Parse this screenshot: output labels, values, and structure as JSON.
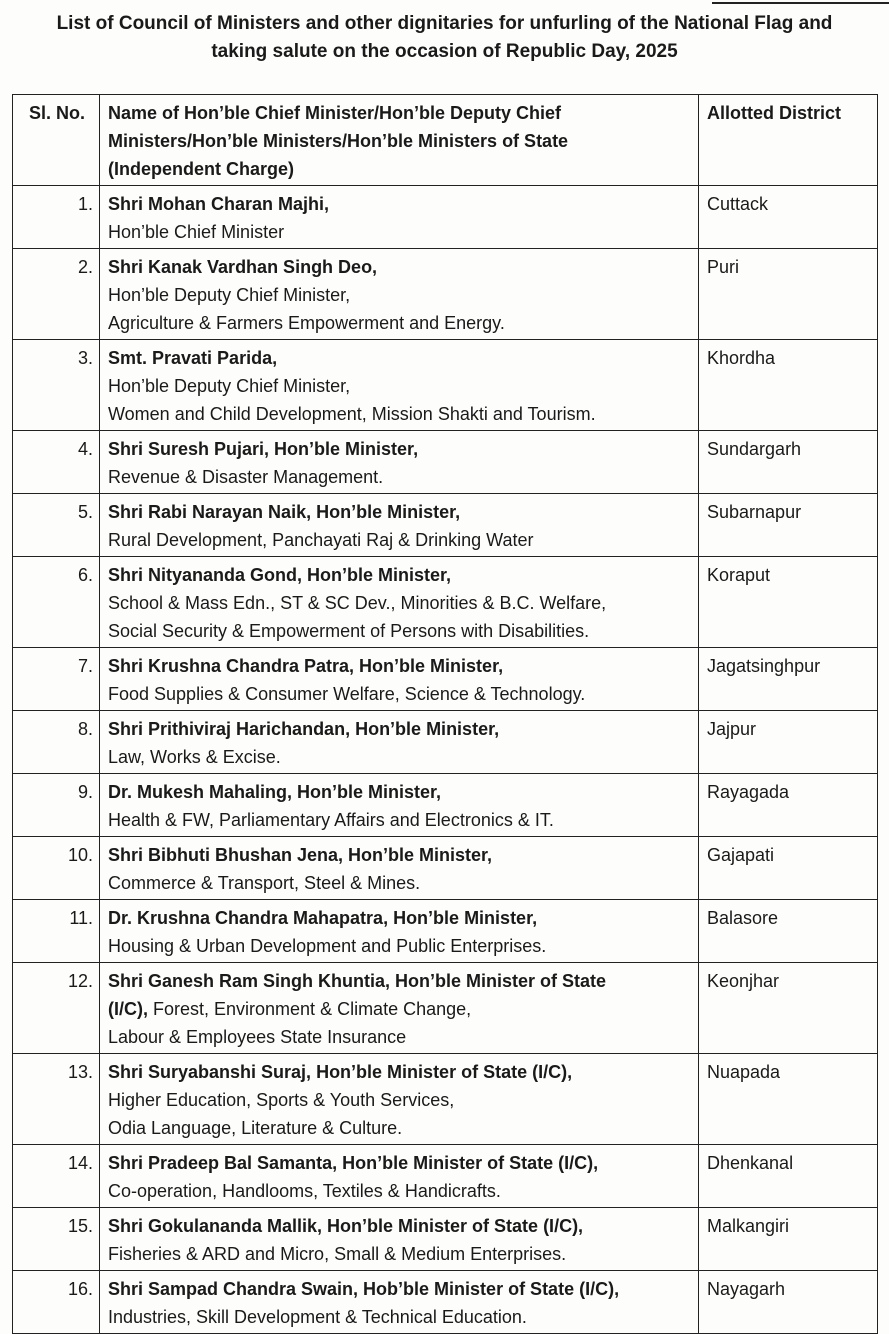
{
  "title": {
    "line1": "List of Council of Ministers and other dignitaries for unfurling of the National Flag and",
    "line2": "taking salute on the occasion of Republic Day, 2025"
  },
  "headers": {
    "sl": "Sl. No.",
    "name": [
      "Name of Hon’ble Chief Minister/Hon’ble Deputy Chief",
      "Ministers/Hon’ble Ministers/Hon’ble Ministers of State",
      "(Independent Charge)"
    ],
    "district": "Allotted District"
  },
  "rows": [
    {
      "sl": "1.",
      "lines": [
        {
          "b": "Shri Mohan Charan Majhi,",
          "t": ""
        },
        {
          "b": "",
          "t": "Hon’ble Chief Minister"
        }
      ],
      "district": "Cuttack"
    },
    {
      "sl": "2.",
      "lines": [
        {
          "b": "Shri Kanak Vardhan Singh Deo,",
          "t": ""
        },
        {
          "b": "",
          "t": "Hon’ble Deputy Chief Minister,"
        },
        {
          "b": "",
          "t": "Agriculture & Farmers Empowerment and Energy."
        }
      ],
      "district": "Puri"
    },
    {
      "sl": "3.",
      "lines": [
        {
          "b": "Smt. Pravati Parida,",
          "t": ""
        },
        {
          "b": "",
          "t": "Hon’ble Deputy Chief Minister,"
        },
        {
          "b": "",
          "t": "Women and Child Development, Mission Shakti and Tourism."
        }
      ],
      "district": "Khordha"
    },
    {
      "sl": "4.",
      "lines": [
        {
          "b": "Shri Suresh Pujari, Hon’ble Minister,",
          "t": ""
        },
        {
          "b": "",
          "t": "Revenue & Disaster Management."
        }
      ],
      "district": "Sundargarh"
    },
    {
      "sl": "5.",
      "lines": [
        {
          "b": "Shri Rabi Narayan Naik, Hon’ble Minister,",
          "t": ""
        },
        {
          "b": "",
          "t": "Rural Development, Panchayati Raj & Drinking Water"
        }
      ],
      "district": "Subarnapur"
    },
    {
      "sl": "6.",
      "lines": [
        {
          "b": "Shri Nityananda Gond, Hon’ble Minister,",
          "t": ""
        },
        {
          "b": "",
          "t": "School & Mass Edn., ST & SC Dev., Minorities & B.C. Welfare,"
        },
        {
          "b": "",
          "t": "Social Security & Empowerment of Persons with Disabilities."
        }
      ],
      "district": "Koraput"
    },
    {
      "sl": "7.",
      "lines": [
        {
          "b": "Shri Krushna Chandra Patra, Hon’ble Minister,",
          "t": ""
        },
        {
          "b": "",
          "t": "Food Supplies & Consumer Welfare, Science & Technology."
        }
      ],
      "district": "Jagatsinghpur"
    },
    {
      "sl": "8.",
      "lines": [
        {
          "b": "Shri Prithiviraj Harichandan, Hon’ble Minister,",
          "t": ""
        },
        {
          "b": "",
          "t": "Law, Works & Excise."
        }
      ],
      "district": "Jajpur"
    },
    {
      "sl": "9.",
      "lines": [
        {
          "b": "Dr. Mukesh Mahaling, Hon’ble Minister,",
          "t": ""
        },
        {
          "b": "",
          "t": "Health & FW, Parliamentary Affairs and Electronics & IT."
        }
      ],
      "district": "Rayagada"
    },
    {
      "sl": "10.",
      "lines": [
        {
          "b": "Shri Bibhuti Bhushan Jena, Hon’ble Minister,",
          "t": ""
        },
        {
          "b": "",
          "t": "Commerce & Transport, Steel & Mines."
        }
      ],
      "district": "Gajapati"
    },
    {
      "sl": "11.",
      "lines": [
        {
          "b": "Dr. Krushna Chandra Mahapatra, Hon’ble Minister,",
          "t": ""
        },
        {
          "b": "",
          "t": "Housing & Urban Development and Public Enterprises."
        }
      ],
      "district": "Balasore"
    },
    {
      "sl": "12.",
      "lines": [
        {
          "b": "Shri Ganesh Ram Singh Khuntia, Hon’ble Minister of State",
          "t": ""
        },
        {
          "b": "(I/C),",
          "t": " Forest, Environment & Climate Change,"
        },
        {
          "b": "",
          "t": "Labour & Employees State Insurance"
        }
      ],
      "district": "Keonjhar"
    },
    {
      "sl": "13.",
      "lines": [
        {
          "b": "Shri Suryabanshi Suraj, Hon’ble Minister of State (I/C),",
          "t": ""
        },
        {
          "b": "",
          "t": "Higher Education, Sports & Youth Services,"
        },
        {
          "b": "",
          "t": "Odia Language, Literature & Culture."
        }
      ],
      "district": "Nuapada"
    },
    {
      "sl": "14.",
      "lines": [
        {
          "b": "Shri Pradeep Bal Samanta, Hon’ble Minister of State (I/C),",
          "t": ""
        },
        {
          "b": "",
          "t": "Co-operation, Handlooms, Textiles & Handicrafts."
        }
      ],
      "district": "Dhenkanal"
    },
    {
      "sl": "15.",
      "lines": [
        {
          "b": "Shri Gokulananda Mallik, Hon’ble Minister of State (I/C),",
          "t": ""
        },
        {
          "b": "",
          "t": "Fisheries & ARD and Micro, Small & Medium Enterprises."
        }
      ],
      "district": "Malkangiri"
    },
    {
      "sl": "16.",
      "lines": [
        {
          "b": "Shri Sampad Chandra Swain, Hob’ble Minister of State (I/C),",
          "t": ""
        },
        {
          "b": "",
          "t": "Industries, Skill Development & Technical Education."
        }
      ],
      "district": "Nayagarh"
    }
  ]
}
